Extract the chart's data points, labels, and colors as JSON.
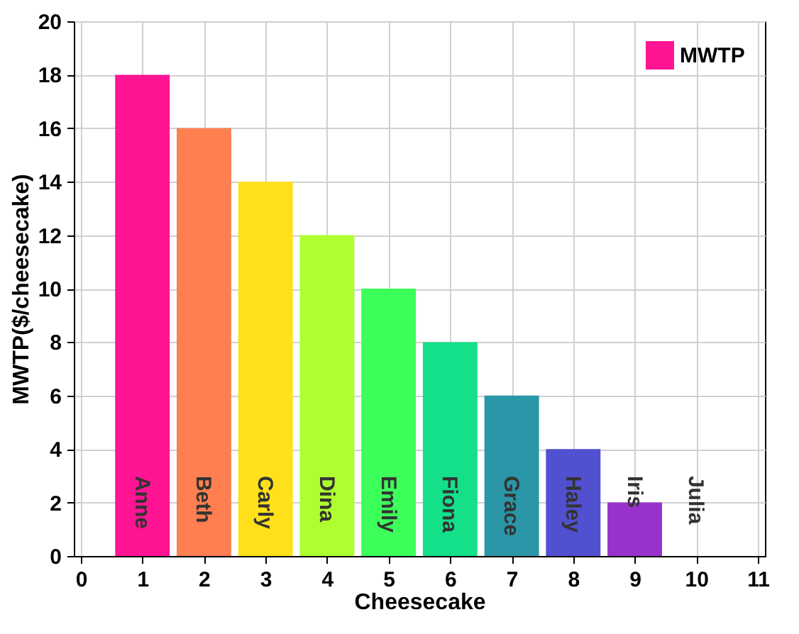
{
  "chart_data": {
    "type": "bar",
    "xlabel": "Cheesecake",
    "ylabel": "MWTP($/cheesecake)",
    "x": [
      1,
      2,
      3,
      4,
      5,
      6,
      7,
      8,
      9,
      10
    ],
    "series": [
      {
        "name": "MWTP",
        "color": "#ff1493",
        "colors": [
          "#ff1493",
          "#ff7f50",
          "#ffe01a",
          "#adff2f",
          "#3cff5a",
          "#14e08a",
          "#2a96a8",
          "#5050d0",
          "#9932cc",
          "#ffffff"
        ],
        "values": [
          18,
          16,
          14,
          12,
          10,
          8,
          6,
          4,
          2,
          0
        ]
      }
    ],
    "xlim": [
      0,
      11
    ],
    "xticks": [
      0,
      1,
      2,
      3,
      4,
      5,
      6,
      7,
      8,
      9,
      10,
      11
    ],
    "ylim": [
      0,
      20
    ],
    "yticks": [
      0,
      2,
      4,
      6,
      8,
      10,
      12,
      14,
      16,
      18,
      20
    ],
    "grid": true,
    "legend": "top right",
    "annotations": [
      "Anne",
      "Beth",
      "Carly",
      "Dina",
      "Emily",
      "Fiona",
      "Grace",
      "Haley",
      "Iris",
      "Julia"
    ]
  }
}
